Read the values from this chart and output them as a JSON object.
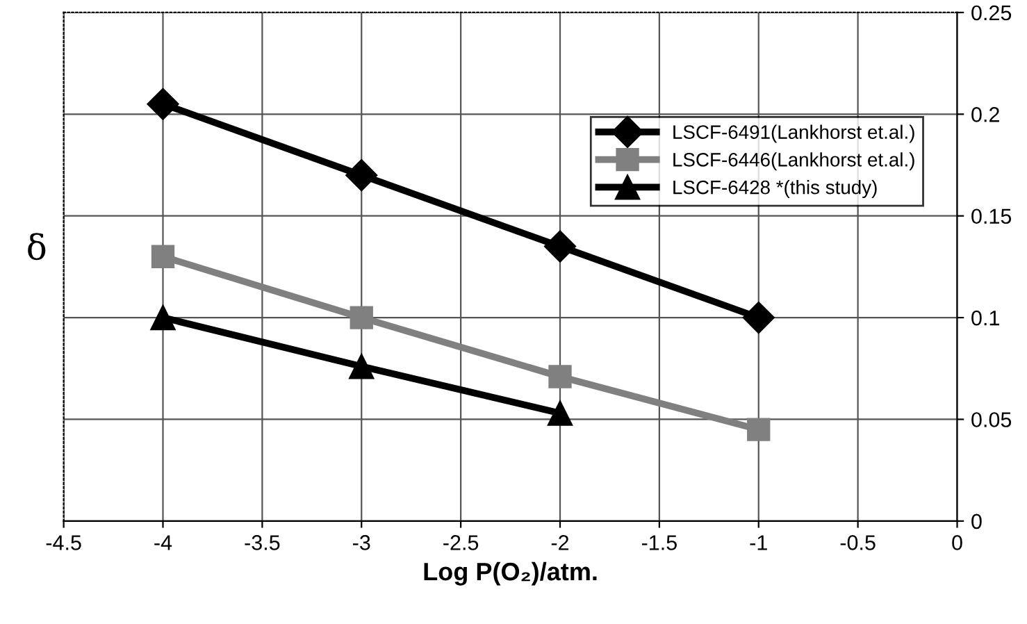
{
  "chart_data": {
    "type": "line",
    "xlabel": "Log P(O₂)/atm.",
    "ylabel": "δ",
    "x": [
      -4,
      -3,
      -2,
      -1
    ],
    "series": [
      {
        "name": "LSCF-6491(Lankhorst et.al.)",
        "color": "#000000",
        "marker": "diamond",
        "values": [
          0.205,
          0.17,
          0.135,
          0.1
        ]
      },
      {
        "name": "LSCF-6446(Lankhorst et.al.)",
        "color": "#808080",
        "marker": "square",
        "values": [
          0.13,
          0.1,
          0.071,
          0.045
        ]
      },
      {
        "name": "LSCF-6428 *(this study)",
        "color": "#000000",
        "marker": "triangle",
        "x": [
          -4,
          -3,
          -2
        ],
        "values": [
          0.1,
          0.076,
          0.053
        ]
      }
    ],
    "xlim": [
      -4.5,
      0
    ],
    "xticks": [
      -4.5,
      -4,
      -3.5,
      -3,
      -2.5,
      -2,
      -1.5,
      -1,
      -0.5,
      0
    ],
    "ylim": [
      0,
      0.25
    ],
    "yticks": [
      0,
      0.05,
      0.1,
      0.15,
      0.2,
      0.25
    ],
    "grid": true,
    "legend": "top right",
    "line_style": "solid"
  }
}
